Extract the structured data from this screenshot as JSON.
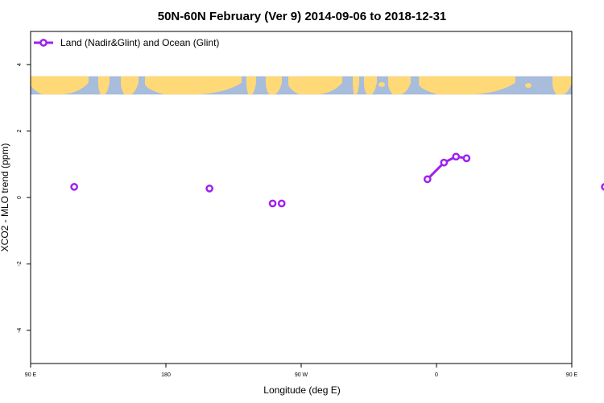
{
  "chart_data": {
    "type": "line",
    "title": "50N-60N February (Ver 9)   2014-09-06 to 2018-12-31",
    "xlabel": "Longitude (deg E)",
    "ylabel": "XCO2 - MLO trend (ppm)",
    "xlim": [
      90,
      450
    ],
    "ylim": [
      -5,
      5
    ],
    "x_ticks": [
      {
        "value": 90,
        "label": "90 E"
      },
      {
        "value": 180,
        "label": "180"
      },
      {
        "value": 270,
        "label": "90 W"
      },
      {
        "value": 360,
        "label": "0"
      },
      {
        "value": 450,
        "label": "90 E"
      },
      {
        "value": 540,
        "label": "180"
      }
    ],
    "y_ticks": [
      {
        "value": -4,
        "label": "-4"
      },
      {
        "value": -2,
        "label": "-2"
      },
      {
        "value": 0,
        "label": "0"
      },
      {
        "value": 2,
        "label": "2"
      },
      {
        "value": 4,
        "label": "4"
      }
    ],
    "legend_position": "top-left",
    "grid": false,
    "series": [
      {
        "name": "Land (Nadir&Glint) and Ocean (Glint)",
        "color": "#a020f0",
        "segments": [
          [
            {
              "x": 119.0,
              "y": 0.32
            }
          ],
          [
            {
              "x": 209.0,
              "y": 0.27
            }
          ],
          [
            {
              "x": 251.0,
              "y": -0.18
            }
          ],
          [
            {
              "x": 257.0,
              "y": -0.18
            }
          ],
          [
            {
              "x": 354.0,
              "y": 0.55
            },
            {
              "x": 365.0,
              "y": 1.05
            },
            {
              "x": 373.0,
              "y": 1.23
            },
            {
              "x": 380.0,
              "y": 1.18
            }
          ],
          [
            {
              "x": 472.0,
              "y": 0.32
            }
          ]
        ]
      }
    ],
    "map_strip": {
      "y_range": [
        3.1,
        3.65
      ],
      "ocean_color": "#a8bcdc",
      "land_color": "#ffd977"
    }
  }
}
